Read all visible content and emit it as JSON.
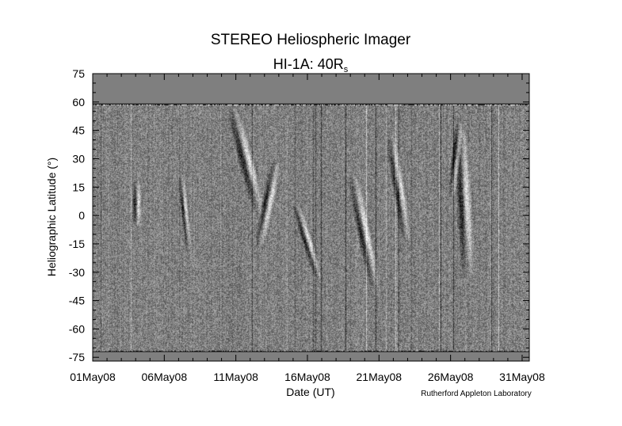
{
  "chart_data": {
    "type": "heatmap",
    "title": "STEREO Heliospheric Imager",
    "subtitle": {
      "main": "HI-1A: 40R",
      "subscript": "s"
    },
    "xlabel": "Date (UT)",
    "ylabel": "Heliographic Latitude (°)",
    "credit": "Rutherford Appleton Laboratory",
    "x_ticks": [
      "01May08",
      "06May08",
      "11May08",
      "16May08",
      "21May08",
      "26May08",
      "31May08"
    ],
    "x_tick_days": [
      1,
      6,
      11,
      16,
      21,
      26,
      31
    ],
    "xlim_days": [
      1,
      31.5
    ],
    "y_ticks": [
      75,
      60,
      45,
      30,
      15,
      0,
      -15,
      -30,
      -45,
      -60,
      -75
    ],
    "ylim": [
      -77,
      75
    ],
    "data_valid_lat_range": [
      -72,
      59
    ],
    "fill_color": "#7f7f7f",
    "grid": false
  }
}
